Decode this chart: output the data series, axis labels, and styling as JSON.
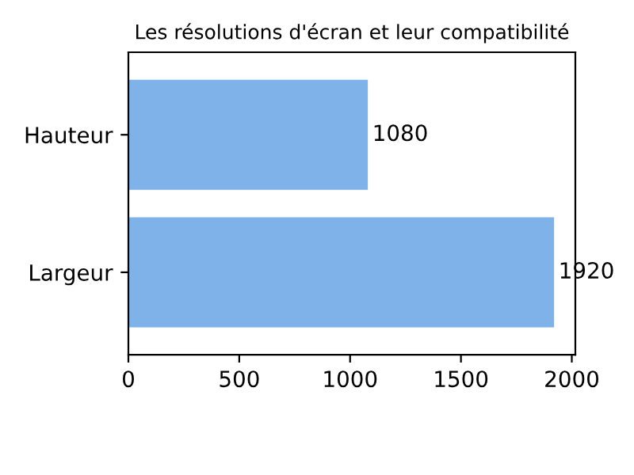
{
  "chart_data": {
    "type": "bar",
    "orientation": "horizontal",
    "title": "Les résolutions d'écran et leur compatibilité",
    "categories": [
      "Hauteur",
      "Largeur"
    ],
    "values": [
      1080,
      1920
    ],
    "color": "#7fb2e8",
    "xlim": [
      0,
      2016
    ],
    "xticks": [
      0,
      500,
      1000,
      1500,
      2000
    ],
    "data_labels": true,
    "grid": false,
    "legend": false
  }
}
